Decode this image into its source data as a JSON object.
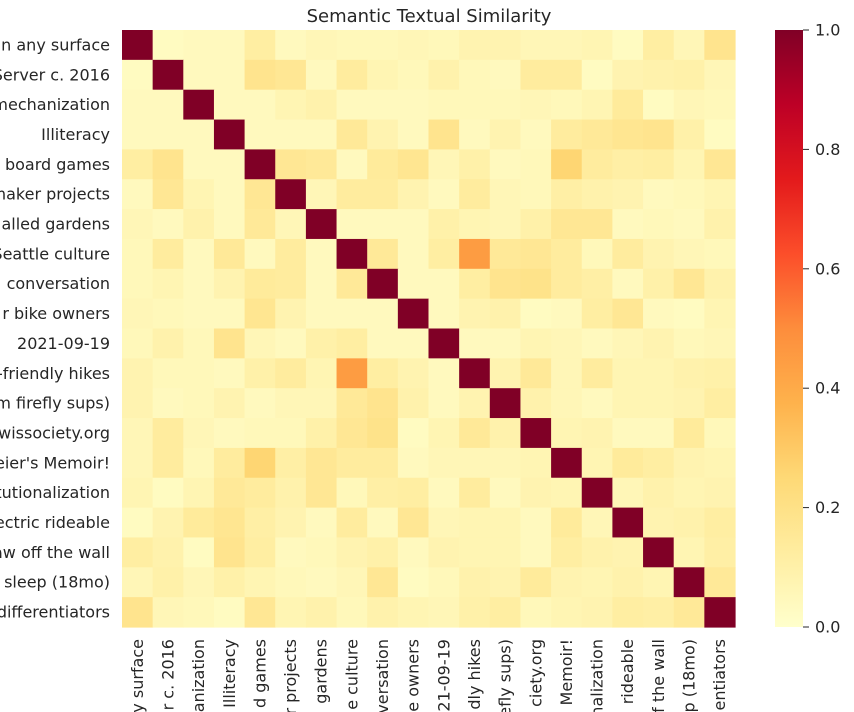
{
  "chart_data": {
    "type": "heatmap",
    "title": "Semantic Textual Similarity",
    "row_labels": [
      "n any surface",
      "Server c. 2016",
      "mechanization",
      "Illiteracy",
      "board games",
      "maker projects",
      "alled gardens",
      "Seattle culture",
      "conversation",
      "r bike owners",
      "2021-09-19",
      "-friendly hikes",
      "m firefly sups)",
      "wissociety.org",
      "eier's Memoir!",
      "tutionalization",
      "ectric rideable",
      "aw off the wall",
      "sleep (18mo)",
      "differentiators"
    ],
    "col_labels": [
      "y surface",
      "r c. 2016",
      "anization",
      "Illiteracy",
      "d games",
      "r projects",
      "gardens",
      "e culture",
      "versation",
      "e owners",
      "21-09-19",
      "dly hikes",
      "efly sups)",
      "ciety.org",
      "Memoir!",
      "nalization",
      "rideable",
      "f the wall",
      "p (18mo)",
      "entiators"
    ],
    "values": [
      [
        1.0,
        0.03,
        0.04,
        0.04,
        0.12,
        0.04,
        0.06,
        0.05,
        0.05,
        0.06,
        0.05,
        0.08,
        0.08,
        0.06,
        0.06,
        0.07,
        0.03,
        0.12,
        0.06,
        0.18
      ],
      [
        0.03,
        1.0,
        0.04,
        0.04,
        0.18,
        0.16,
        0.04,
        0.13,
        0.07,
        0.05,
        0.09,
        0.05,
        0.04,
        0.13,
        0.13,
        0.03,
        0.08,
        0.09,
        0.1,
        0.06
      ],
      [
        0.04,
        0.04,
        1.0,
        0.04,
        0.04,
        0.07,
        0.09,
        0.04,
        0.04,
        0.04,
        0.05,
        0.05,
        0.05,
        0.06,
        0.05,
        0.07,
        0.14,
        0.03,
        0.06,
        0.05
      ],
      [
        0.04,
        0.04,
        0.04,
        1.0,
        0.04,
        0.04,
        0.04,
        0.15,
        0.08,
        0.04,
        0.18,
        0.04,
        0.08,
        0.04,
        0.13,
        0.15,
        0.17,
        0.18,
        0.1,
        0.03
      ],
      [
        0.12,
        0.18,
        0.04,
        0.04,
        1.0,
        0.16,
        0.15,
        0.04,
        0.14,
        0.17,
        0.06,
        0.1,
        0.04,
        0.05,
        0.26,
        0.13,
        0.11,
        0.12,
        0.07,
        0.16
      ],
      [
        0.04,
        0.16,
        0.07,
        0.04,
        0.16,
        1.0,
        0.06,
        0.13,
        0.13,
        0.08,
        0.04,
        0.13,
        0.06,
        0.05,
        0.11,
        0.09,
        0.08,
        0.04,
        0.05,
        0.07
      ],
      [
        0.06,
        0.04,
        0.09,
        0.04,
        0.15,
        0.06,
        1.0,
        0.04,
        0.04,
        0.04,
        0.1,
        0.07,
        0.06,
        0.1,
        0.16,
        0.16,
        0.04,
        0.05,
        0.04,
        0.09
      ],
      [
        0.05,
        0.13,
        0.04,
        0.15,
        0.04,
        0.13,
        0.04,
        1.0,
        0.15,
        0.04,
        0.12,
        0.45,
        0.15,
        0.16,
        0.13,
        0.05,
        0.13,
        0.08,
        0.06,
        0.05
      ],
      [
        0.05,
        0.07,
        0.04,
        0.08,
        0.14,
        0.13,
        0.04,
        0.15,
        1.0,
        0.04,
        0.04,
        0.12,
        0.18,
        0.19,
        0.13,
        0.11,
        0.04,
        0.1,
        0.16,
        0.09
      ],
      [
        0.06,
        0.05,
        0.04,
        0.04,
        0.17,
        0.08,
        0.04,
        0.04,
        0.04,
        1.0,
        0.04,
        0.08,
        0.09,
        0.03,
        0.04,
        0.12,
        0.16,
        0.04,
        0.03,
        0.07
      ],
      [
        0.05,
        0.09,
        0.05,
        0.18,
        0.06,
        0.04,
        0.1,
        0.12,
        0.04,
        0.04,
        1.0,
        0.04,
        0.04,
        0.07,
        0.06,
        0.04,
        0.06,
        0.08,
        0.05,
        0.06
      ],
      [
        0.08,
        0.05,
        0.05,
        0.04,
        0.1,
        0.13,
        0.07,
        0.45,
        0.12,
        0.08,
        0.04,
        1.0,
        0.08,
        0.15,
        0.06,
        0.13,
        0.07,
        0.07,
        0.09,
        0.1
      ],
      [
        0.08,
        0.04,
        0.05,
        0.08,
        0.04,
        0.06,
        0.06,
        0.15,
        0.18,
        0.09,
        0.04,
        0.08,
        1.0,
        0.09,
        0.06,
        0.04,
        0.07,
        0.07,
        0.08,
        0.12
      ],
      [
        0.06,
        0.13,
        0.06,
        0.04,
        0.05,
        0.05,
        0.1,
        0.16,
        0.19,
        0.03,
        0.07,
        0.15,
        0.09,
        1.0,
        0.07,
        0.08,
        0.04,
        0.04,
        0.14,
        0.05
      ],
      [
        0.06,
        0.13,
        0.05,
        0.13,
        0.26,
        0.11,
        0.16,
        0.13,
        0.13,
        0.04,
        0.06,
        0.06,
        0.06,
        0.07,
        1.0,
        0.07,
        0.14,
        0.12,
        0.08,
        0.07
      ],
      [
        0.07,
        0.03,
        0.07,
        0.15,
        0.13,
        0.09,
        0.16,
        0.05,
        0.11,
        0.12,
        0.04,
        0.13,
        0.04,
        0.08,
        0.07,
        1.0,
        0.06,
        0.09,
        0.07,
        0.08
      ],
      [
        0.03,
        0.08,
        0.14,
        0.17,
        0.11,
        0.08,
        0.04,
        0.13,
        0.04,
        0.16,
        0.06,
        0.07,
        0.07,
        0.04,
        0.14,
        0.06,
        1.0,
        0.08,
        0.09,
        0.12
      ],
      [
        0.12,
        0.09,
        0.03,
        0.18,
        0.12,
        0.04,
        0.05,
        0.08,
        0.1,
        0.04,
        0.08,
        0.07,
        0.07,
        0.04,
        0.12,
        0.09,
        0.08,
        1.0,
        0.07,
        0.11
      ],
      [
        0.06,
        0.1,
        0.06,
        0.1,
        0.07,
        0.05,
        0.04,
        0.06,
        0.16,
        0.03,
        0.05,
        0.09,
        0.08,
        0.14,
        0.08,
        0.07,
        0.09,
        0.07,
        1.0,
        0.15
      ],
      [
        0.18,
        0.06,
        0.05,
        0.03,
        0.16,
        0.07,
        0.09,
        0.05,
        0.09,
        0.07,
        0.06,
        0.1,
        0.12,
        0.05,
        0.07,
        0.08,
        0.12,
        0.11,
        0.15,
        1.0
      ]
    ],
    "vmin": 0.0,
    "vmax": 1.0,
    "colormap": "YlOrRd",
    "colorbar_ticks": [
      0.0,
      0.2,
      0.4,
      0.6,
      0.8,
      1.0
    ],
    "colorbar_tick_labels": [
      "0.0",
      "0.2",
      "0.4",
      "0.6",
      "0.8",
      "1.0"
    ],
    "grid": false,
    "legend": "colorbar-right"
  }
}
